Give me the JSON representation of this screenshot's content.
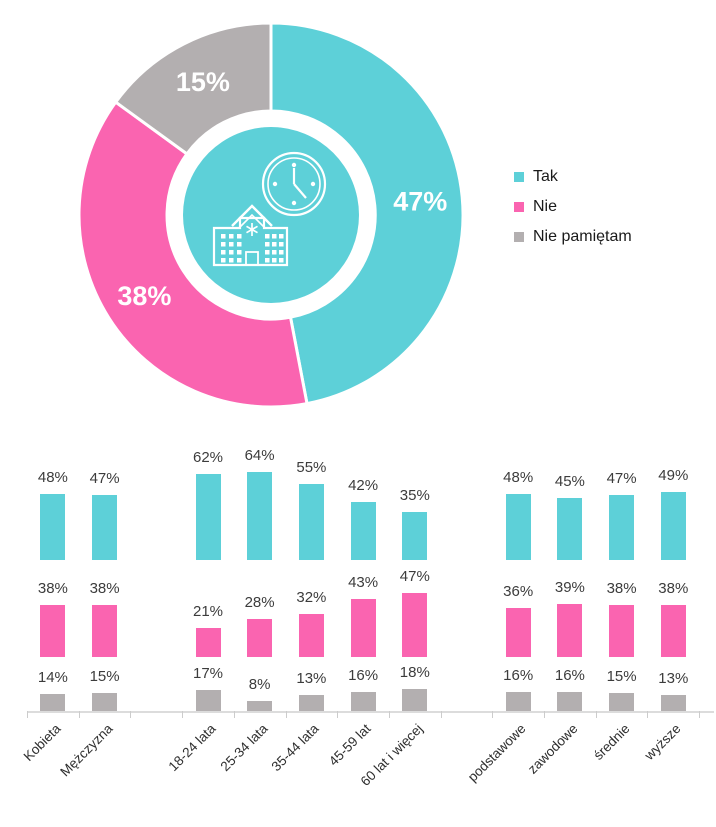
{
  "colors": {
    "tak": "#5DD0D8",
    "nie": "#FA64B0",
    "nie_pamietam": "#B3AFB0",
    "axis": "#DCDCDC",
    "bar_label_text": "#3C3C3C",
    "donut_label_text": "#FFFFFF"
  },
  "legend": {
    "items": [
      {
        "label": "Tak",
        "color": "#5DD0D8"
      },
      {
        "label": "Nie",
        "color": "#FA64B0"
      },
      {
        "label": "Nie pamiętam",
        "color": "#B3AFB0"
      }
    ]
  },
  "center_icons": [
    "clock-icon",
    "school-building-icon"
  ],
  "chart_data": [
    {
      "type": "pie",
      "donut": true,
      "labels": [
        "Tak",
        "Nie",
        "Nie pamiętam"
      ],
      "values": [
        47,
        38,
        15
      ],
      "value_labels": [
        "47%",
        "38%",
        "15%"
      ],
      "colors": [
        "#5DD0D8",
        "#FA64B0",
        "#B3AFB0"
      ],
      "start_angle_deg": 0,
      "direction": "clockwise",
      "legend_position": "right"
    },
    {
      "type": "bar",
      "series_names": [
        "Tak",
        "Nie",
        "Nie pamiętam"
      ],
      "series_colors": [
        "#5DD0D8",
        "#FA64B0",
        "#B3AFB0"
      ],
      "value_suffix": "%",
      "grid": false,
      "y_axis_visible": false,
      "value_labels_shown": true,
      "category_label_rotation_deg": -45,
      "groups": [
        {
          "categories": [
            "Kobieta",
            "Mężczyzna"
          ],
          "series": [
            {
              "name": "Tak",
              "values": [
                48,
                47
              ]
            },
            {
              "name": "Nie",
              "values": [
                38,
                38
              ]
            },
            {
              "name": "Nie pamiętam",
              "values": [
                14,
                15
              ]
            }
          ]
        },
        {
          "categories": [
            "18-24 lata",
            "25-34 lata",
            "35-44 lata",
            "45-59 lat",
            "60 lat i więcej"
          ],
          "series": [
            {
              "name": "Tak",
              "values": [
                62,
                64,
                55,
                42,
                35
              ]
            },
            {
              "name": "Nie",
              "values": [
                21,
                28,
                32,
                43,
                47
              ]
            },
            {
              "name": "Nie pamiętam",
              "values": [
                17,
                8,
                13,
                16,
                18
              ]
            }
          ]
        },
        {
          "categories": [
            "podstawowe",
            "zawodowe",
            "średnie",
            "wyższe"
          ],
          "series": [
            {
              "name": "Tak",
              "values": [
                48,
                45,
                47,
                49
              ]
            },
            {
              "name": "Nie",
              "values": [
                36,
                39,
                38,
                38
              ]
            },
            {
              "name": "Nie pamiętam",
              "values": [
                16,
                16,
                15,
                13
              ]
            }
          ]
        }
      ]
    }
  ]
}
